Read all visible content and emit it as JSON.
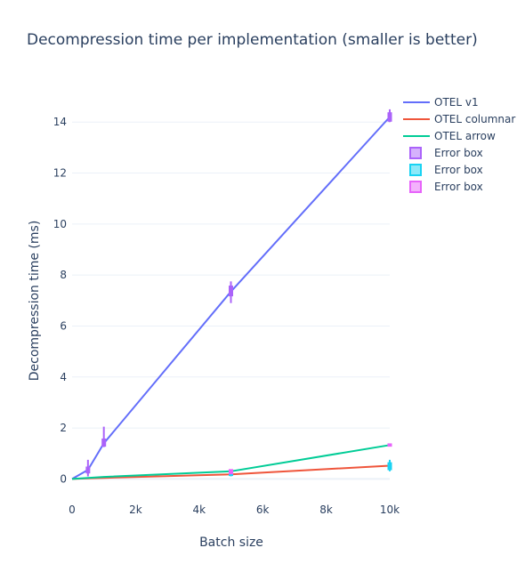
{
  "chart_data": {
    "type": "line",
    "title": "Decompression time per implementation (smaller is better)",
    "xlabel": "Batch size",
    "ylabel": "Decompression time (ms)",
    "xlim": [
      0,
      10000
    ],
    "ylim": [
      -0.65,
      15.3
    ],
    "x_ticks": [
      0,
      2000,
      4000,
      6000,
      8000,
      10000
    ],
    "x_tick_labels": [
      "0",
      "2k",
      "4k",
      "6k",
      "8k",
      "10k"
    ],
    "y_ticks": [
      0,
      2,
      4,
      6,
      8,
      10,
      12,
      14
    ],
    "y_tick_labels": [
      "0",
      "2",
      "4",
      "6",
      "8",
      "10",
      "12",
      "14"
    ],
    "grid": true,
    "legend_position": "top-right",
    "series": [
      {
        "name": "OTEL v1",
        "color": "#636efa",
        "x": [
          0,
          500,
          1000,
          5000,
          10000
        ],
        "y": [
          0,
          0.35,
          1.4,
          7.35,
          14.2
        ]
      },
      {
        "name": "OTEL columnar",
        "color": "#ef553b",
        "x": [
          0,
          500,
          1000,
          5000,
          10000
        ],
        "y": [
          0,
          0.02,
          0.04,
          0.18,
          0.52
        ]
      },
      {
        "name": "OTEL arrow",
        "color": "#00cc96",
        "x": [
          0,
          500,
          1000,
          5000,
          10000
        ],
        "y": [
          0,
          0.04,
          0.08,
          0.3,
          1.33
        ]
      }
    ],
    "error_boxes": [
      {
        "name": "Error box",
        "color": "#ab63fa",
        "boxes": [
          {
            "x": 500,
            "low": 0.1,
            "q1": 0.25,
            "q3": 0.45,
            "high": 0.75
          },
          {
            "x": 1000,
            "low": 1.25,
            "q1": 1.3,
            "q3": 1.55,
            "high": 2.05
          },
          {
            "x": 5000,
            "low": 6.9,
            "q1": 7.2,
            "q3": 7.55,
            "high": 7.75
          },
          {
            "x": 10000,
            "low": 14.0,
            "q1": 14.05,
            "q3": 14.35,
            "high": 14.5
          }
        ]
      },
      {
        "name": "Error box",
        "color": "#19d3f3",
        "boxes": [
          {
            "x": 5000,
            "low": 0.1,
            "q1": 0.15,
            "q3": 0.22,
            "high": 0.3
          },
          {
            "x": 10000,
            "low": 0.3,
            "q1": 0.38,
            "q3": 0.62,
            "high": 0.75
          }
        ]
      },
      {
        "name": "Error box",
        "color": "#e763fa",
        "boxes": [
          {
            "x": 5000,
            "low": 0.18,
            "q1": 0.22,
            "q3": 0.35,
            "high": 0.38
          },
          {
            "x": 10000,
            "low": 1.28,
            "q1": 1.3,
            "q3": 1.36,
            "high": 1.38
          }
        ]
      }
    ]
  }
}
